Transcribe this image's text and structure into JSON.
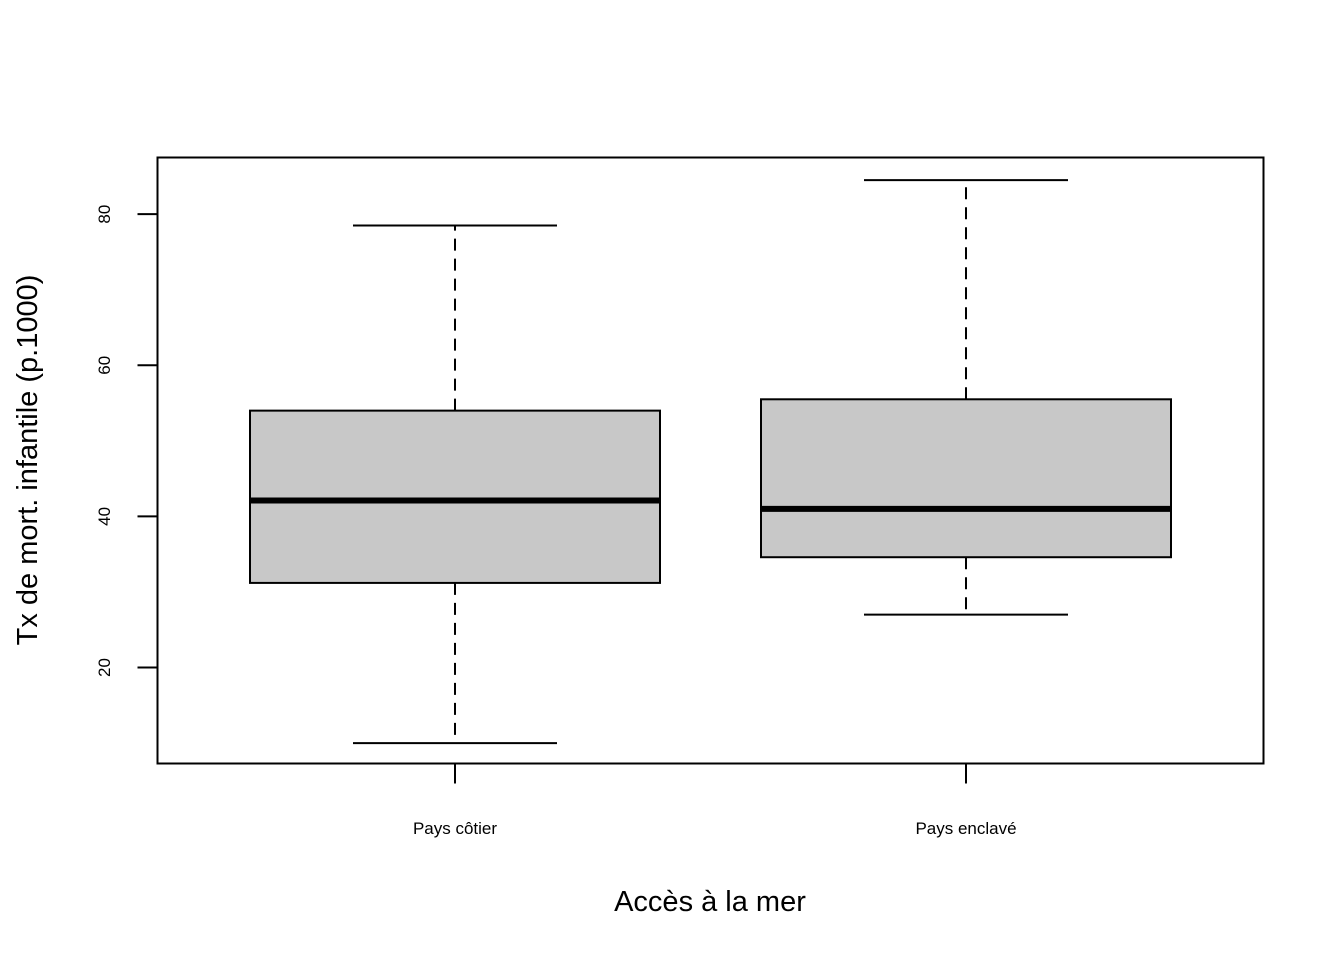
{
  "chart_data": {
    "type": "box",
    "title": "",
    "xlabel": "Accès à la mer",
    "ylabel": "Tx de mort. infantile (p.1000)",
    "ylim": [
      7.3,
      87.5
    ],
    "y_ticks": [
      20,
      40,
      60,
      80
    ],
    "grid": false,
    "legend": "none",
    "categories": [
      "Pays côtier",
      "Pays enclavé"
    ],
    "boxes": [
      {
        "category": "Pays côtier",
        "whisker_low": 10.0,
        "q1": 31.2,
        "median": 42.1,
        "q3": 54.0,
        "whisker_high": 78.5
      },
      {
        "category": "Pays enclavé",
        "whisker_low": 27.0,
        "q1": 34.6,
        "median": 41.0,
        "q3": 55.5,
        "whisker_high": 84.5
      }
    ],
    "colors": {
      "box_fill": "#c8c8c8",
      "stroke": "#000000",
      "background": "#ffffff"
    }
  }
}
